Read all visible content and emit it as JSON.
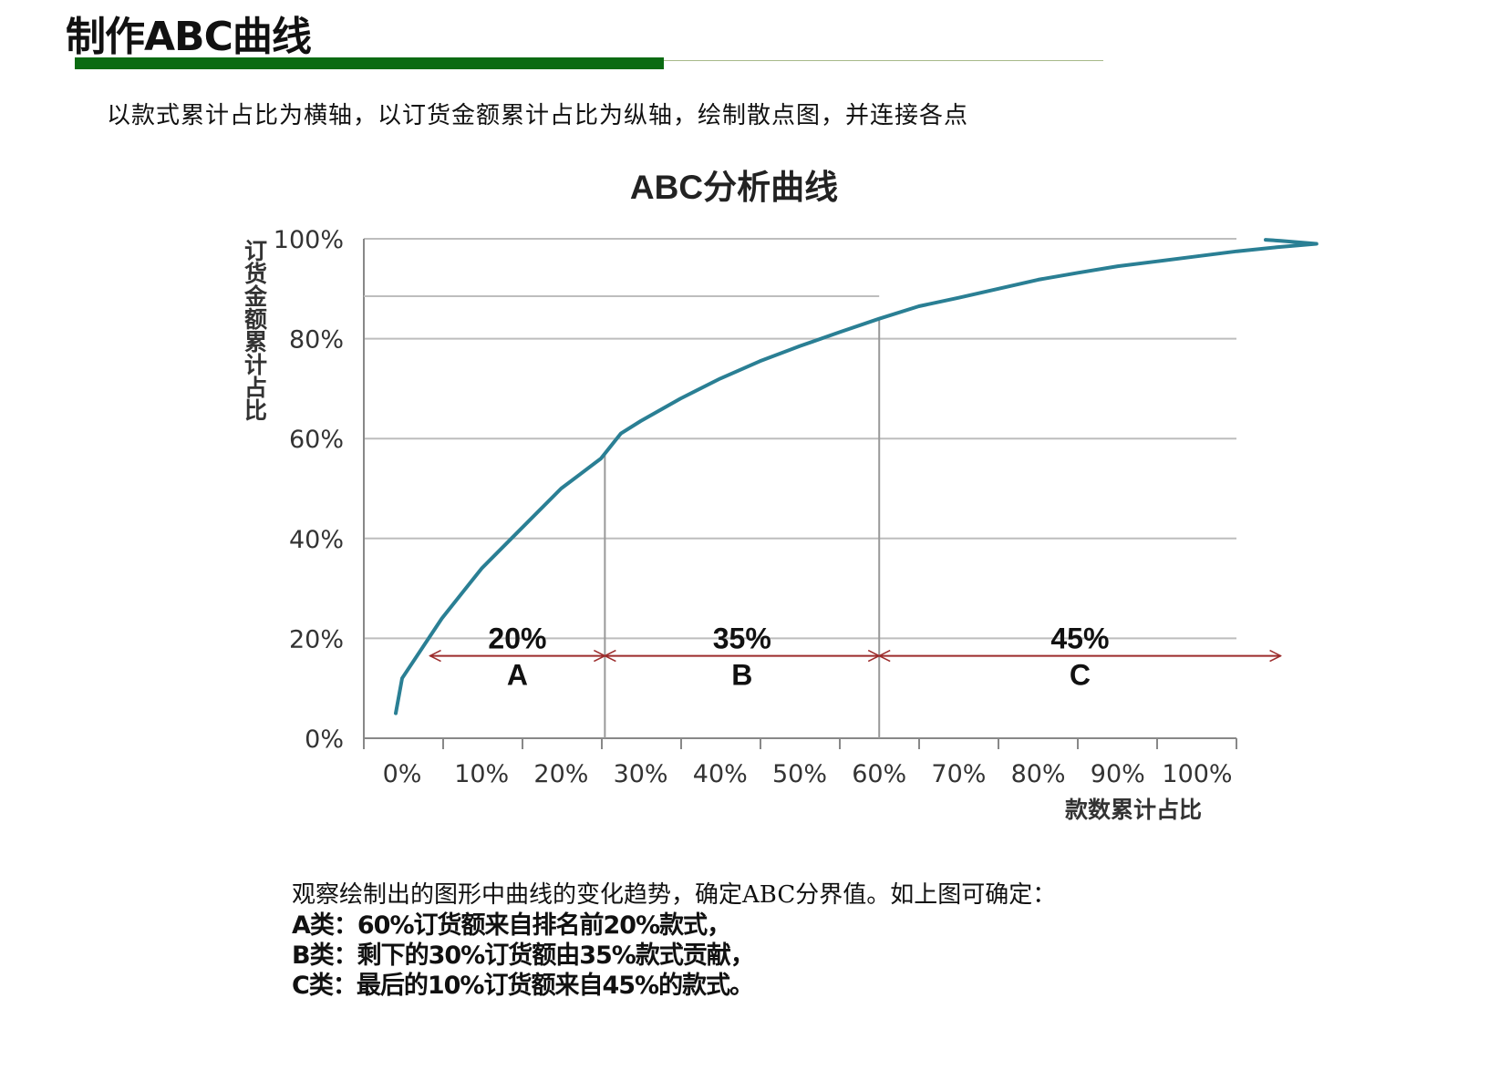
{
  "header": {
    "title": "制作ABC曲线",
    "instruction": "以款式累计占比为横轴，以订货金额累计占比为纵轴，绘制散点图，并连接各点"
  },
  "chart_data": {
    "type": "line",
    "title": "ABC分析曲线",
    "xlabel": "款数累计占比",
    "ylabel": "订货金额累计占比",
    "x_ticks": [
      "0%",
      "10%",
      "20%",
      "30%",
      "40%",
      "50%",
      "60%",
      "70%",
      "80%",
      "90%",
      "100%"
    ],
    "y_ticks": [
      "0%",
      "20%",
      "40%",
      "60%",
      "80%",
      "100%"
    ],
    "ylim": [
      0,
      100
    ],
    "grid": true,
    "series": [
      {
        "color": "#2a7f94",
        "points": [
          [
            -0.8,
            5
          ],
          [
            0,
            12
          ],
          [
            5,
            24
          ],
          [
            10,
            34
          ],
          [
            15,
            42
          ],
          [
            20,
            50
          ],
          [
            25,
            56
          ],
          [
            27.5,
            61
          ],
          [
            30,
            63.5
          ],
          [
            35,
            68
          ],
          [
            40,
            72
          ],
          [
            45,
            75.5
          ],
          [
            50,
            78.5
          ],
          [
            55,
            81.3
          ],
          [
            60,
            84
          ],
          [
            65,
            86.5
          ],
          [
            70,
            88.2
          ],
          [
            75,
            90
          ],
          [
            80,
            91.8
          ],
          [
            85,
            93.2
          ],
          [
            90,
            94.5
          ],
          [
            95,
            95.5
          ],
          [
            100,
            96.5
          ],
          [
            105,
            97.5
          ],
          [
            110,
            98.3
          ],
          [
            115,
            99
          ],
          [
            110.5,
            99.6
          ],
          [
            108.6,
            99.8
          ]
        ]
      }
    ],
    "divider_x": [
      25.5,
      60
    ],
    "segments": [
      {
        "pct": "20%",
        "class": "A",
        "x_start": 3.5,
        "x_end": 25.5
      },
      {
        "pct": "35%",
        "class": "B",
        "x_start": 25.5,
        "x_end": 60
      },
      {
        "pct": "45%",
        "class": "C",
        "x_start": 60,
        "x_end": 110.5
      }
    ],
    "segment_arrow_y": 16.5,
    "top_boundary_y": 88.5,
    "colors": {
      "curve": "#2a7f94",
      "grid": "#bdbdbd",
      "arrow": "#9c2b2b",
      "axis": "#888888"
    }
  },
  "notes": {
    "lead": "观察绘制出的图形中曲线的变化趋势，确定ABC分界值。如上图可确定：",
    "lines": [
      "A类：60%订货额来自排名前20%款式，",
      "B类：剩下的30%订货额由35%款式贡献，",
      "C类：最后的10%订货额来自45%的款式。"
    ]
  }
}
